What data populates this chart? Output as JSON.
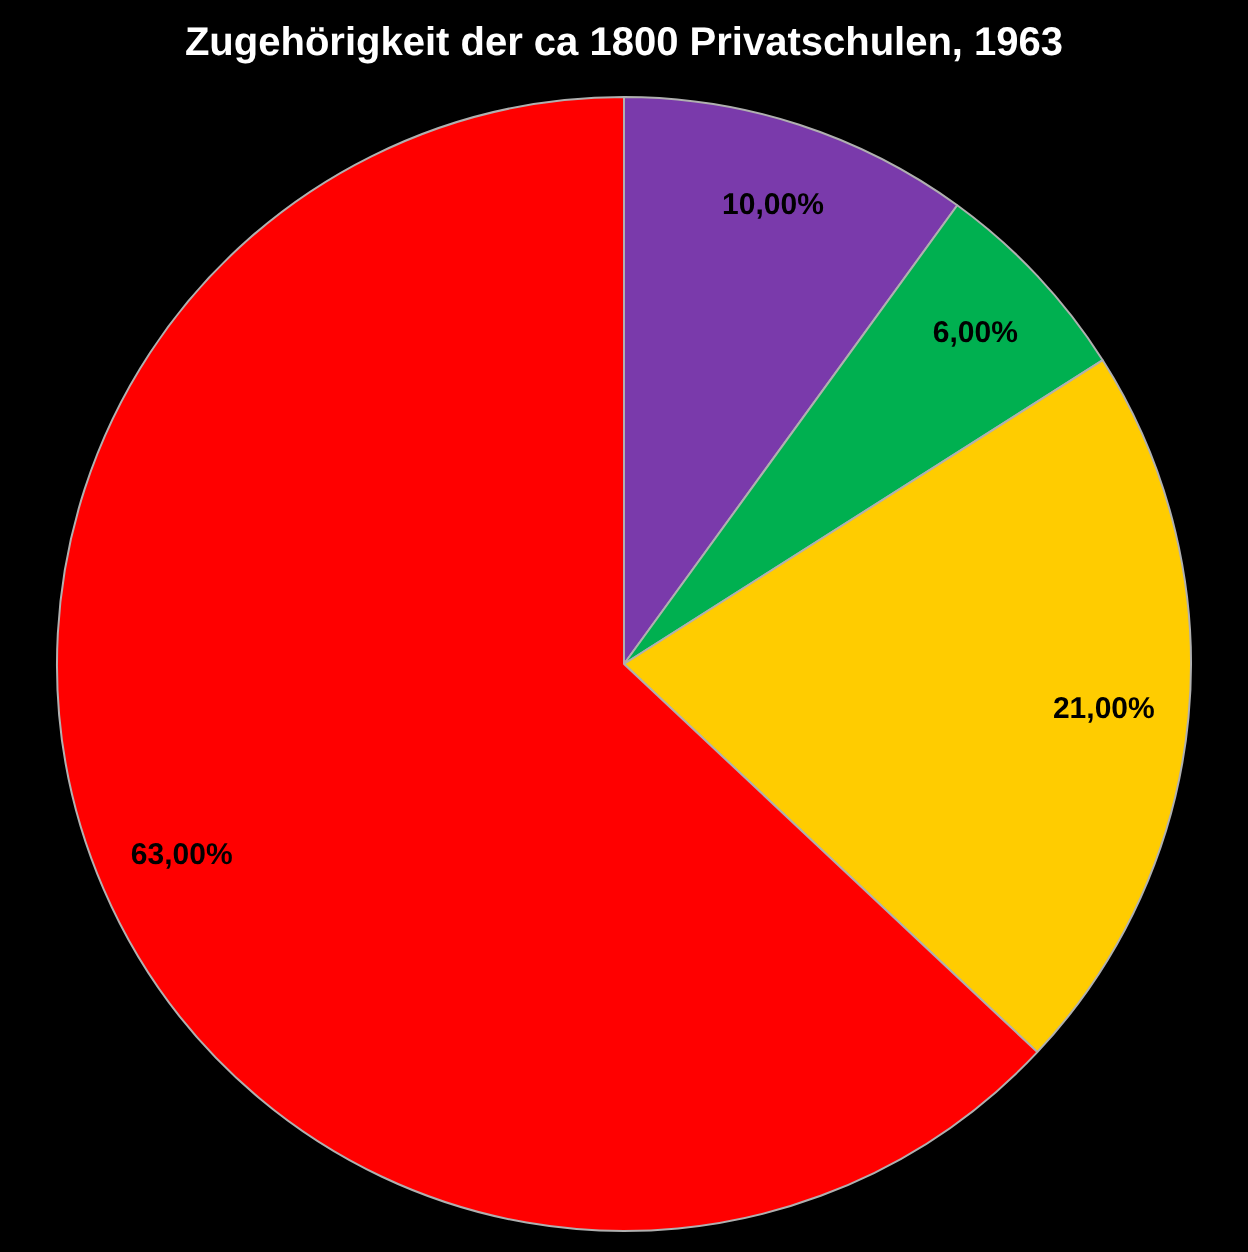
{
  "chart_data": {
    "type": "pie",
    "title": "Zugehörigkeit der ca 1800 Privatschulen, 1963",
    "categories": [
      null,
      null,
      null,
      null
    ],
    "values": [
      10,
      6,
      21,
      63
    ],
    "colors": [
      "#7a3aab",
      "#00b050",
      "#ffcc00",
      "#ff0000"
    ],
    "value_labels": [
      "10,00%",
      "6,00%",
      "21,00%",
      "63,00%"
    ],
    "legend": false
  }
}
